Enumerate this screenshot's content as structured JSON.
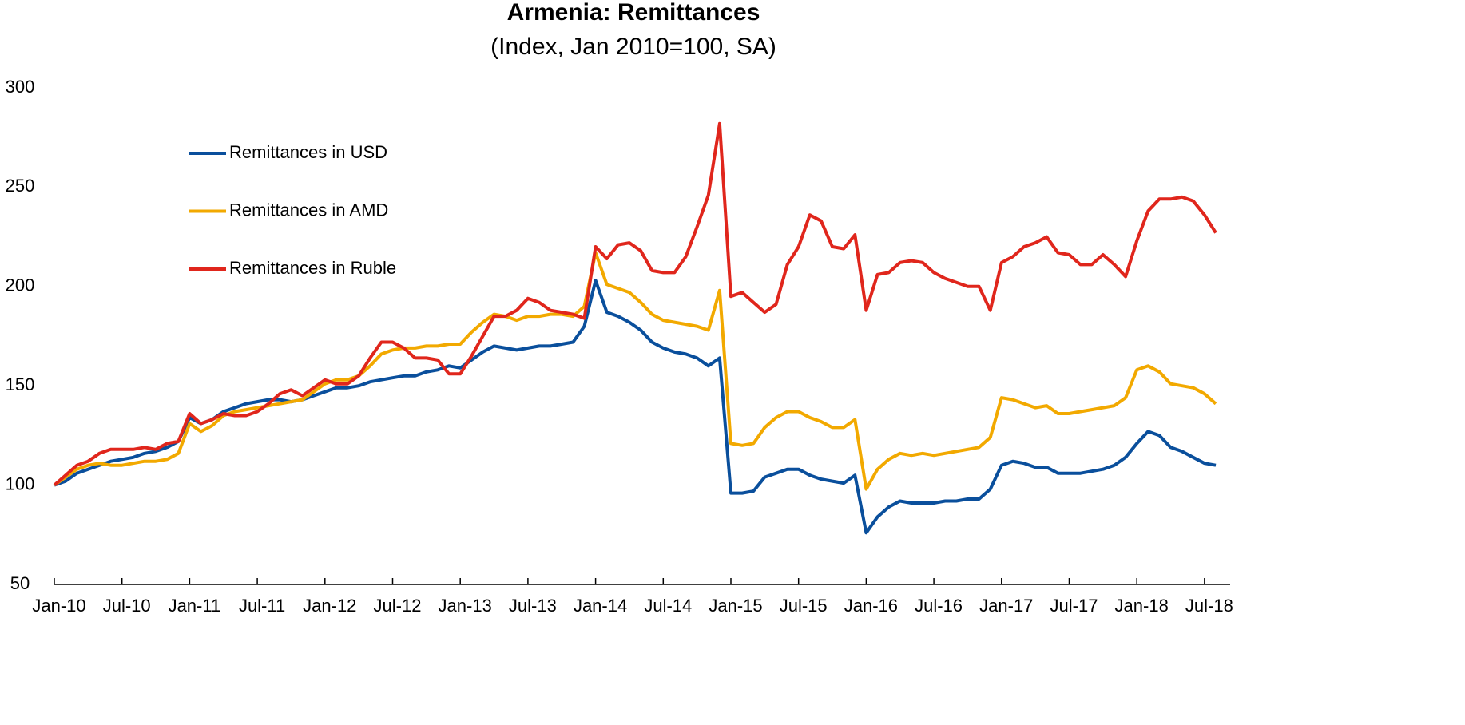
{
  "chart_data": {
    "type": "line",
    "title": "Armenia: Remittances",
    "subtitle": "(Index, Jan 2010=100, SA)",
    "categories": [
      "Jan-10",
      null,
      null,
      null,
      null,
      null,
      "Jul-10",
      null,
      null,
      null,
      null,
      null,
      "Jan-11",
      null,
      null,
      null,
      null,
      null,
      "Jul-11",
      null,
      null,
      null,
      null,
      null,
      "Jan-12",
      null,
      null,
      null,
      null,
      null,
      "Jul-12",
      null,
      null,
      null,
      null,
      null,
      "Jan-13",
      null,
      null,
      null,
      null,
      null,
      "Jul-13",
      null,
      null,
      null,
      null,
      null,
      "Jan-14",
      null,
      null,
      null,
      null,
      null,
      "Jul-14",
      null,
      null,
      null,
      null,
      null,
      "Jan-15",
      null,
      null,
      null,
      null,
      null,
      "Jul-15",
      null,
      null,
      null,
      null,
      null,
      "Jan-16",
      null,
      null,
      null,
      null,
      null,
      "Jul-16",
      null,
      null,
      null,
      null,
      null,
      "Jan-17",
      null,
      null,
      null,
      null,
      null,
      "Jul-17",
      null,
      null,
      null,
      null,
      null,
      "Jan-18",
      null,
      null,
      null,
      null,
      null,
      "Jul-18",
      null
    ],
    "series": [
      {
        "name": "Remittances in USD",
        "color": "#0a4f9c",
        "values": [
          100,
          102,
          106,
          108,
          110,
          112,
          113,
          114,
          116,
          117,
          119,
          122,
          134,
          131,
          133,
          137,
          139,
          141,
          142,
          143,
          143,
          142,
          143,
          145,
          147,
          149,
          149,
          150,
          152,
          153,
          154,
          155,
          155,
          157,
          158,
          160,
          159,
          163,
          167,
          170,
          169,
          168,
          169,
          170,
          170,
          171,
          172,
          180,
          203,
          187,
          185,
          182,
          178,
          172,
          169,
          167,
          166,
          164,
          160,
          164,
          96,
          96,
          97,
          104,
          106,
          108,
          108,
          105,
          103,
          102,
          101,
          105,
          76,
          84,
          89,
          92,
          91,
          91,
          91,
          92,
          92,
          93,
          93,
          98,
          110,
          112,
          111,
          109,
          109,
          106,
          106,
          106,
          107,
          108,
          110,
          114,
          121,
          127,
          125,
          119,
          117,
          114,
          111,
          110
        ]
      },
      {
        "name": "Remittances in AMD",
        "color": "#f2a900",
        "values": [
          100,
          104,
          108,
          110,
          111,
          110,
          110,
          111,
          112,
          112,
          113,
          116,
          131,
          127,
          130,
          135,
          137,
          138,
          139,
          140,
          141,
          142,
          143,
          147,
          151,
          153,
          153,
          155,
          160,
          166,
          168,
          169,
          169,
          170,
          170,
          171,
          171,
          177,
          182,
          186,
          185,
          183,
          185,
          185,
          186,
          186,
          185,
          190,
          217,
          201,
          199,
          197,
          192,
          186,
          183,
          182,
          181,
          180,
          178,
          198,
          121,
          120,
          121,
          129,
          134,
          137,
          137,
          134,
          132,
          129,
          129,
          133,
          98,
          108,
          113,
          116,
          115,
          116,
          115,
          116,
          117,
          118,
          119,
          124,
          144,
          143,
          141,
          139,
          140,
          136,
          136,
          137,
          138,
          139,
          140,
          144,
          158,
          160,
          157,
          151,
          150,
          149,
          146,
          141
        ]
      },
      {
        "name": "Remittances in Ruble",
        "color": "#e0261c",
        "values": [
          100,
          105,
          110,
          112,
          116,
          118,
          118,
          118,
          119,
          118,
          121,
          122,
          136,
          131,
          133,
          136,
          135,
          135,
          137,
          141,
          146,
          148,
          145,
          149,
          153,
          151,
          151,
          155,
          164,
          172,
          172,
          169,
          164,
          164,
          163,
          156,
          156,
          165,
          175,
          185,
          185,
          188,
          194,
          192,
          188,
          187,
          186,
          184,
          220,
          214,
          221,
          222,
          218,
          208,
          207,
          207,
          215,
          230,
          246,
          282,
          195,
          197,
          192,
          187,
          191,
          211,
          220,
          236,
          233,
          220,
          219,
          226,
          188,
          206,
          207,
          212,
          213,
          212,
          207,
          204,
          202,
          200,
          200,
          188,
          212,
          215,
          220,
          222,
          225,
          217,
          216,
          211,
          211,
          216,
          211,
          205,
          223,
          238,
          244,
          244,
          245,
          243,
          236,
          227
        ]
      }
    ],
    "ylim": [
      50,
      300
    ],
    "yticks": [
      50,
      100,
      150,
      200,
      250,
      300
    ],
    "grid": false,
    "legend": "upper left"
  }
}
